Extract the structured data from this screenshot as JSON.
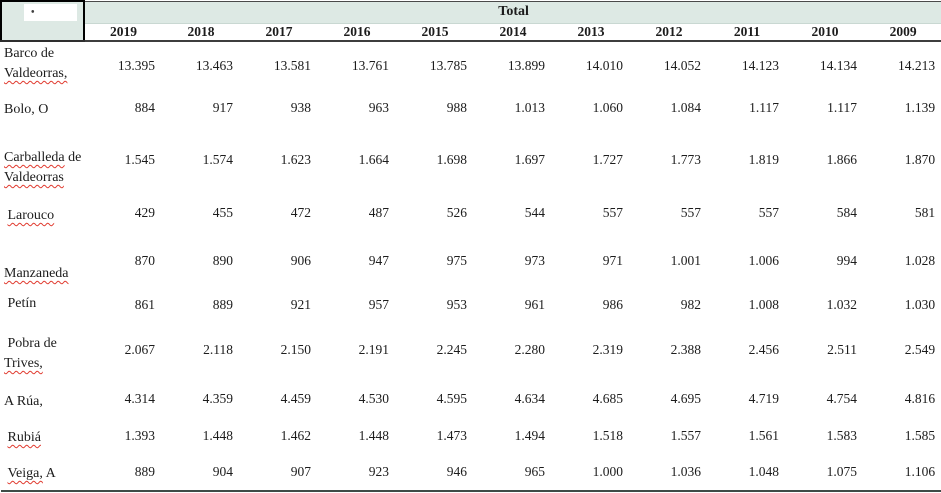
{
  "colors": {
    "header_bg": "#dde9e4",
    "squiggle_red": "#e0392e",
    "header_border_dark": "#3e3e3e",
    "table_bottom_border": "#3f4b47"
  },
  "table": {
    "bullet_icon": "•",
    "total_label": "Total",
    "years": [
      "2019",
      "2018",
      "2017",
      "2016",
      "2015",
      "2014",
      "2013",
      "2012",
      "2011",
      "2010",
      "2009"
    ],
    "rows": [
      {
        "label_parts": [
          {
            "text": "Barco de ",
            "wavy": false
          },
          {
            "text": "Valdeorras,",
            "wavy": true
          }
        ],
        "values": [
          "13.395",
          "13.463",
          "13.581",
          "13.761",
          "13.785",
          "13.899",
          "14.010",
          "14.052",
          "14.123",
          "14.134",
          "14.213"
        ]
      },
      {
        "label_parts": [
          {
            "text": "Bolo, O",
            "wavy": false
          }
        ],
        "values": [
          "884",
          "917",
          "938",
          "963",
          "988",
          "1.013",
          "1.060",
          "1.084",
          "1.117",
          "1.117",
          "1.139"
        ]
      },
      {
        "label_parts": [
          {
            "text": "Carballeda",
            "wavy": true
          },
          {
            "text": " de ",
            "wavy": false
          },
          {
            "text": "Valdeorras",
            "wavy": true
          }
        ],
        "values": [
          "1.545",
          "1.574",
          "1.623",
          "1.664",
          "1.698",
          "1.697",
          "1.727",
          "1.773",
          "1.819",
          "1.866",
          "1.870"
        ]
      },
      {
        "label_parts": [
          {
            "text": " ",
            "wavy": false
          },
          {
            "text": "Larouco",
            "wavy": true
          }
        ],
        "values": [
          "429",
          "455",
          "472",
          "487",
          "526",
          "544",
          "557",
          "557",
          "557",
          "584",
          "581"
        ]
      },
      {
        "label_parts": [
          {
            "text": "Manzaneda",
            "wavy": true
          }
        ],
        "values": [
          "870",
          "890",
          "906",
          "947",
          "975",
          "973",
          "971",
          "1.001",
          "1.006",
          "994",
          "1.028"
        ]
      },
      {
        "label_parts": [
          {
            "text": " Petín",
            "wavy": false
          }
        ],
        "values": [
          "861",
          "889",
          "921",
          "957",
          "953",
          "961",
          "986",
          "982",
          "1.008",
          "1.032",
          "1.030"
        ]
      },
      {
        "label_parts": [
          {
            "text": " Pobra de ",
            "wavy": false
          },
          {
            "text": "Trives,",
            "wavy": true
          }
        ],
        "values": [
          "2.067",
          "2.118",
          "2.150",
          "2.191",
          "2.245",
          "2.280",
          "2.319",
          "2.388",
          "2.456",
          "2.511",
          "2.549"
        ]
      },
      {
        "label_parts": [
          {
            "text": "A Rúa,",
            "wavy": false
          }
        ],
        "values": [
          "4.314",
          "4.359",
          "4.459",
          "4.530",
          "4.595",
          "4.634",
          "4.685",
          "4.695",
          "4.719",
          "4.754",
          "4.816"
        ]
      },
      {
        "label_parts": [
          {
            "text": " ",
            "wavy": false
          },
          {
            "text": "Rubiá",
            "wavy": true
          }
        ],
        "values": [
          "1.393",
          "1.448",
          "1.462",
          "1.448",
          "1.473",
          "1.494",
          "1.518",
          "1.557",
          "1.561",
          "1.583",
          "1.585"
        ]
      },
      {
        "label_parts": [
          {
            "text": " ",
            "wavy": false
          },
          {
            "text": "Veiga,",
            "wavy": true
          },
          {
            "text": " A",
            "wavy": false
          }
        ],
        "values": [
          "889",
          "904",
          "907",
          "923",
          "946",
          "965",
          "1.000",
          "1.036",
          "1.048",
          "1.075",
          "1.106"
        ]
      }
    ]
  }
}
